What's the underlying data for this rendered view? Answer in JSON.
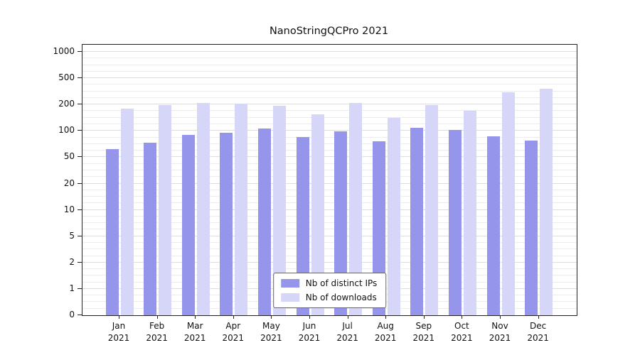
{
  "title": "NanoStringQCPro 2021",
  "chart_data": {
    "type": "bar",
    "title": "NanoStringQCPro 2021",
    "categories": [
      "Jan 2021",
      "Feb 2021",
      "Mar 2021",
      "Apr 2021",
      "May 2021",
      "Jun 2021",
      "Jul 2021",
      "Aug 2021",
      "Sep 2021",
      "Oct 2021",
      "Nov 2021",
      "Dec 2021"
    ],
    "series": [
      {
        "name": "Nb of distinct IPs",
        "color": "#9595ec",
        "values": [
          65,
          78,
          93,
          97,
          110,
          88,
          99,
          80,
          112,
          103,
          90,
          82
        ]
      },
      {
        "name": "Nb of downloads",
        "color": "#d6d6f8",
        "values": [
          185,
          197,
          215,
          210,
          195,
          162,
          220,
          150,
          197,
          176,
          340,
          380
        ]
      }
    ],
    "y_ticks": [
      0,
      1,
      2,
      5,
      10,
      20,
      50,
      100,
      200,
      500,
      1000
    ],
    "y_scale": "log-like, labeled ticks equally spaced",
    "xlabel": "",
    "ylabel": "",
    "grid": true,
    "legend_position": "bottom-center-inside"
  }
}
